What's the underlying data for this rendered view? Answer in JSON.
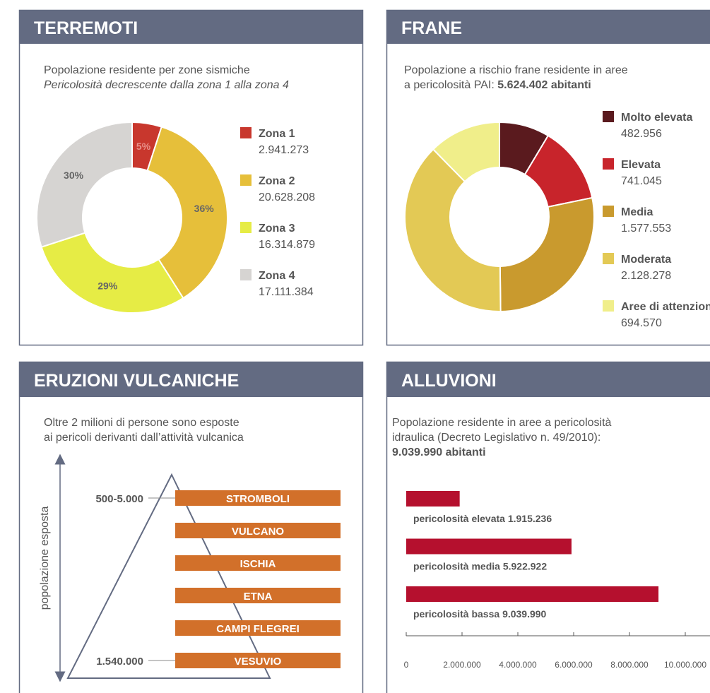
{
  "chart_data": [
    {
      "type": "pie",
      "title": "TERREMOTI",
      "subtitle": "Popolazione residente per zone sismiche",
      "subtitle_italic": "Pericolosità decrescente dalla zona 1 alla zona 4",
      "categories": [
        "Zona 1",
        "Zona 2",
        "Zona 3",
        "Zona 4"
      ],
      "values": [
        5,
        36,
        29,
        30
      ],
      "value_labels": [
        "5%",
        "36%",
        "29%",
        "30%"
      ],
      "populations": [
        "2.941.273",
        "20.628.208",
        "16.314.879",
        "17.111.384"
      ],
      "colors": [
        "#c8372d",
        "#e6bf3a",
        "#e6ec45",
        "#d6d4d2"
      ]
    },
    {
      "type": "pie",
      "title": "FRANE",
      "subtitle": "Popolazione a rischio frane residente in aree",
      "subtitle_2": "a pericolosità PAI: ",
      "subtitle_bold": "5.624.402 abitanti",
      "categories": [
        "Molto elevata",
        "Elevata",
        "Media",
        "Moderata",
        "Aree di attenzione"
      ],
      "values": [
        482956,
        741045,
        1577553,
        2128278,
        694570
      ],
      "value_labels": [
        "482.956",
        "741.045",
        "1.577.553",
        "2.128.278",
        "694.570"
      ],
      "colors": [
        "#5a1a1e",
        "#c8242b",
        "#c99a2e",
        "#e3c955",
        "#f0ee8a"
      ]
    },
    {
      "type": "hbar",
      "title": "ALLUVIONI",
      "subtitle": "Popolazione residente in aree a pericolosità",
      "subtitle_2": "idraulica (Decreto Legislativo n. 49/2010):",
      "subtitle_bold": "9.039.990 abitanti",
      "categories": [
        "pericolosità elevata",
        "pericolosità media",
        "pericolosità bassa"
      ],
      "values": [
        1915236,
        5922922,
        9039990
      ],
      "value_labels": [
        "1.915.236",
        "5.922.922",
        "9.039.990"
      ],
      "color": "#b5102e",
      "xlim": [
        0,
        10000000
      ],
      "xticks": [
        0,
        {
          "value": 2000000,
          "label": "2.000.000"
        },
        {
          "value": 4000000,
          "label": "4.000.000"
        },
        {
          "value": 6000000,
          "label": "6.000.000"
        },
        {
          "value": 8000000,
          "label": "8.000.000"
        },
        {
          "value": 10000000,
          "label": "10.000.000"
        }
      ]
    }
  ],
  "eruzioni": {
    "title": "ERUZIONI VULCANICHE",
    "subtitle": "Oltre 2 milioni di persone sono esposte",
    "subtitle_2": "ai pericoli derivanti dall’attività vulcanica",
    "axis_label": "popolazione esposta",
    "top_label": "500-5.000",
    "bottom_label": "1.540.000",
    "volcanoes": [
      "STROMBOLI",
      "VULCANO",
      "ISCHIA",
      "ETNA",
      "CAMPI FLEGREI",
      "VESUVIO"
    ]
  }
}
